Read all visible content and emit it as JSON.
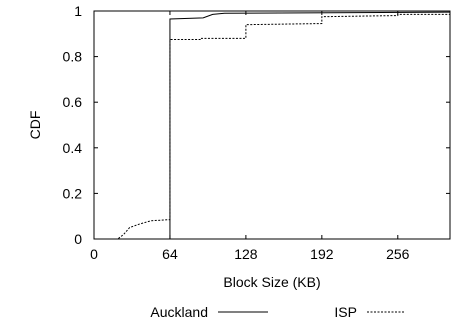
{
  "chart_data": {
    "type": "line",
    "xlabel": "Block Size (KB)",
    "ylabel": "CDF",
    "xlim": [
      0,
      300
    ],
    "ylim": [
      0,
      1
    ],
    "x_ticks": [
      0,
      64,
      128,
      192,
      256
    ],
    "y_ticks": [
      0,
      0.2,
      0.4,
      0.6,
      0.8,
      1
    ],
    "x_tick_labels": [
      "0",
      "64",
      "128",
      "192",
      "256"
    ],
    "y_tick_labels": [
      "0",
      "0.2",
      "0.4",
      "0.6",
      "0.8",
      "1"
    ],
    "grid": false,
    "legend_position": "bottom",
    "series": [
      {
        "name": "Auckland",
        "style": "solid",
        "color": "#000000",
        "points": [
          [
            0,
            0
          ],
          [
            64,
            0
          ],
          [
            64,
            0.965
          ],
          [
            92,
            0.97
          ],
          [
            100,
            0.985
          ],
          [
            110,
            0.99
          ],
          [
            300,
            0.995
          ]
        ]
      },
      {
        "name": "ISP",
        "style": "dashed",
        "color": "#000000",
        "points": [
          [
            0,
            0
          ],
          [
            20,
            0
          ],
          [
            25,
            0.02
          ],
          [
            30,
            0.05
          ],
          [
            38,
            0.065
          ],
          [
            48,
            0.08
          ],
          [
            64,
            0.085
          ],
          [
            64,
            0.875
          ],
          [
            90,
            0.875
          ],
          [
            90,
            0.88
          ],
          [
            128,
            0.88
          ],
          [
            128,
            0.94
          ],
          [
            192,
            0.945
          ],
          [
            192,
            0.975
          ],
          [
            256,
            0.98
          ],
          [
            256,
            0.985
          ],
          [
            300,
            0.985
          ]
        ]
      }
    ]
  }
}
